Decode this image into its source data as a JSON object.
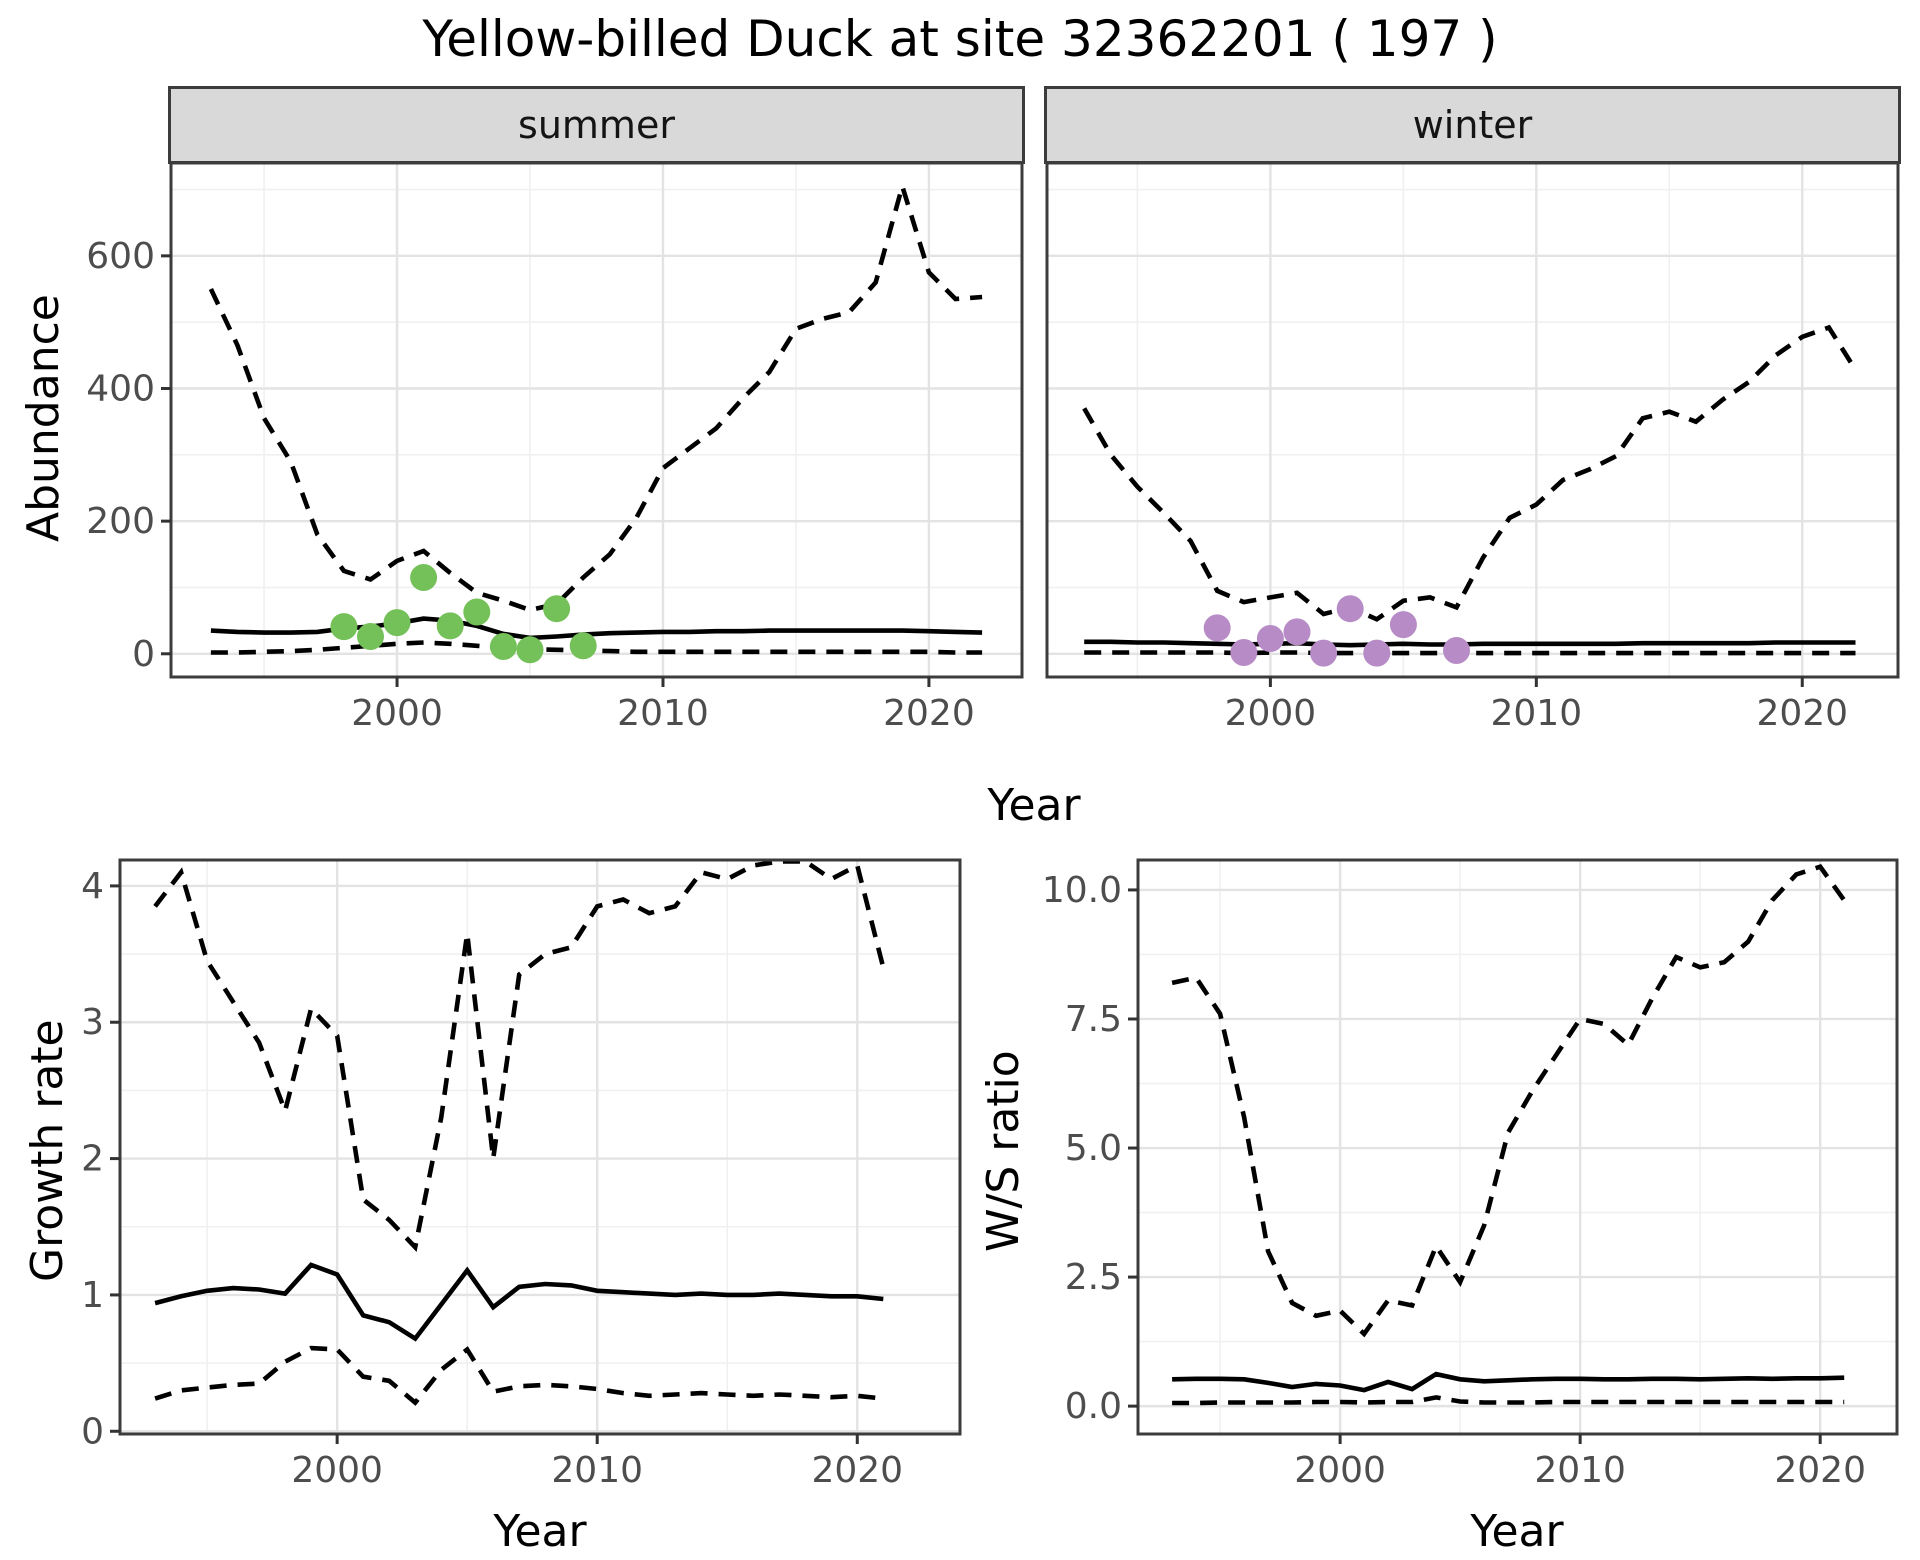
{
  "title": "Yellow-billed Duck at site 32362201 ( 197 )",
  "shared_axes": {
    "y": "Abundance",
    "x": "Year"
  },
  "colors": {
    "summer_point": "#74c159",
    "winter_point": "#b78cc6",
    "line": "#000000",
    "grid_major": "#e3e3e3",
    "grid_minor": "#f0f0f0",
    "panel_border": "#3c3c3c",
    "strip_bg": "#d9d9d9",
    "tick_text": "#4d4d4d"
  },
  "chart_data": [
    {
      "id": "summer",
      "type": "line",
      "strip_label": "summer",
      "xlabel": "Year",
      "ylabel": "Abundance",
      "xlim": [
        1991.5,
        2023.5
      ],
      "ylim": [
        -35,
        740
      ],
      "x_ticks": {
        "values": [
          2000,
          2010,
          2020
        ],
        "labels": [
          "2000",
          "2010",
          "2020"
        ]
      },
      "y_ticks": {
        "values": [
          0,
          200,
          400,
          600
        ],
        "labels": [
          "0",
          "200",
          "400",
          "600"
        ]
      },
      "x_minor": [
        1995,
        2005,
        2015
      ],
      "y_minor": [
        100,
        300,
        500,
        700
      ],
      "x": [
        1993,
        1994,
        1995,
        1996,
        1997,
        1998,
        1999,
        2000,
        2001,
        2002,
        2003,
        2004,
        2005,
        2006,
        2007,
        2008,
        2009,
        2010,
        2011,
        2012,
        2013,
        2014,
        2015,
        2016,
        2017,
        2018,
        2019,
        2020,
        2021,
        2022
      ],
      "series": [
        {
          "name": "upper_95ci",
          "style": "dashed",
          "values": [
            550,
            465,
            355,
            290,
            180,
            125,
            112,
            140,
            155,
            122,
            92,
            80,
            66,
            75,
            115,
            150,
            205,
            280,
            310,
            340,
            385,
            425,
            490,
            505,
            515,
            560,
            705,
            575,
            535,
            538
          ]
        },
        {
          "name": "median",
          "style": "solid",
          "values": [
            35,
            33,
            32,
            32,
            33,
            38,
            41,
            46,
            53,
            50,
            42,
            30,
            24,
            26,
            29,
            31,
            32,
            33,
            33,
            34,
            34,
            35,
            35,
            35,
            35,
            35,
            35,
            34,
            33,
            32
          ]
        },
        {
          "name": "lower_95ci",
          "style": "dashed",
          "values": [
            2,
            2,
            3,
            4,
            6,
            9,
            12,
            15,
            17,
            15,
            12,
            9,
            7,
            6,
            5,
            4,
            3,
            3,
            3,
            3,
            3,
            3,
            3,
            3,
            3,
            3,
            3,
            3,
            2,
            2
          ]
        }
      ],
      "points": {
        "name": "observed-counts",
        "color": "#74c159",
        "x": [
          1998,
          1999,
          2000,
          2001,
          2002,
          2003,
          2004,
          2005,
          2006,
          2007
        ],
        "y": [
          41,
          26,
          47,
          115,
          42,
          63,
          11,
          6,
          68,
          12
        ]
      }
    },
    {
      "id": "winter",
      "type": "line",
      "strip_label": "winter",
      "xlabel": "Year",
      "ylabel": "Abundance",
      "xlim": [
        1991.6,
        2023.6
      ],
      "ylim": [
        -35,
        740
      ],
      "x_ticks": {
        "values": [
          2000,
          2010,
          2020
        ],
        "labels": [
          "2000",
          "2010",
          "2020"
        ]
      },
      "y_ticks": {
        "values": [
          0,
          200,
          400,
          600
        ],
        "labels": [
          "0",
          "200",
          "400",
          "600"
        ]
      },
      "x_minor": [
        1995,
        2005,
        2015
      ],
      "y_minor": [
        100,
        300,
        500,
        700
      ],
      "x": [
        1993,
        1994,
        1995,
        1996,
        1997,
        1998,
        1999,
        2000,
        2001,
        2002,
        2003,
        2004,
        2005,
        2006,
        2007,
        2008,
        2009,
        2010,
        2011,
        2012,
        2013,
        2014,
        2015,
        2016,
        2017,
        2018,
        2019,
        2020,
        2021,
        2022
      ],
      "series": [
        {
          "name": "upper_95ci",
          "style": "dashed",
          "values": [
            370,
            300,
            252,
            212,
            170,
            95,
            78,
            85,
            92,
            60,
            70,
            52,
            80,
            85,
            70,
            145,
            205,
            225,
            262,
            278,
            298,
            355,
            365,
            350,
            383,
            410,
            450,
            478,
            492,
            428
          ]
        },
        {
          "name": "median",
          "style": "solid",
          "values": [
            18,
            18,
            17,
            17,
            16,
            15,
            14,
            15,
            16,
            14,
            13,
            14,
            15,
            14,
            14,
            15,
            15,
            15,
            15,
            15,
            15,
            16,
            16,
            16,
            16,
            16,
            17,
            17,
            17,
            17
          ]
        },
        {
          "name": "lower_95ci",
          "style": "dashed",
          "values": [
            2,
            2,
            2,
            2,
            2,
            2,
            1,
            2,
            2,
            1,
            1,
            1,
            1,
            1,
            1,
            1,
            1,
            1,
            1,
            1,
            1,
            1,
            1,
            1,
            1,
            1,
            1,
            1,
            1,
            1
          ]
        }
      ],
      "points": {
        "name": "observed-counts",
        "color": "#b78cc6",
        "x": [
          1998,
          1999,
          2000,
          2001,
          2002,
          2003,
          2004,
          2005,
          2007
        ],
        "y": [
          39,
          2,
          23,
          33,
          1,
          68,
          1,
          44,
          5
        ]
      }
    },
    {
      "id": "growth",
      "type": "line",
      "strip_label": "",
      "xlabel": "Year",
      "ylabel": "Growth rate",
      "xlim": [
        1991.65,
        2023.95
      ],
      "ylim": [
        -0.02,
        4.19
      ],
      "x_ticks": {
        "values": [
          2000,
          2010,
          2020
        ],
        "labels": [
          "2000",
          "2010",
          "2020"
        ]
      },
      "y_ticks": {
        "values": [
          0,
          1,
          2,
          3,
          4
        ],
        "labels": [
          "0",
          "1",
          "2",
          "3",
          "4"
        ]
      },
      "x_minor": [
        1995,
        2005,
        2015
      ],
      "y_minor": [
        0.5,
        1.5,
        2.5,
        3.5
      ],
      "x": [
        1993,
        1994,
        1995,
        1996,
        1997,
        1998,
        1999,
        2000,
        2001,
        2002,
        2003,
        2004,
        2005,
        2006,
        2007,
        2008,
        2009,
        2010,
        2011,
        2012,
        2013,
        2014,
        2015,
        2016,
        2017,
        2018,
        2019,
        2020,
        2021
      ],
      "series": [
        {
          "name": "upper_95ci",
          "style": "dashed",
          "values": [
            3.85,
            4.1,
            3.45,
            3.15,
            2.85,
            2.35,
            3.1,
            2.9,
            1.7,
            1.55,
            1.35,
            2.3,
            3.65,
            2.0,
            3.35,
            3.5,
            3.55,
            3.85,
            3.9,
            3.8,
            3.85,
            4.1,
            4.05,
            4.15,
            4.18,
            4.18,
            4.05,
            4.15,
            3.4
          ]
        },
        {
          "name": "median",
          "style": "solid",
          "values": [
            0.94,
            0.99,
            1.03,
            1.05,
            1.04,
            1.01,
            1.22,
            1.15,
            0.85,
            0.8,
            0.68,
            0.93,
            1.18,
            0.91,
            1.06,
            1.08,
            1.07,
            1.03,
            1.02,
            1.01,
            1.0,
            1.01,
            1.0,
            1.0,
            1.01,
            1.0,
            0.99,
            0.99,
            0.97
          ]
        },
        {
          "name": "lower_95ci",
          "style": "dashed",
          "values": [
            0.24,
            0.3,
            0.32,
            0.34,
            0.35,
            0.51,
            0.61,
            0.6,
            0.4,
            0.37,
            0.21,
            0.45,
            0.6,
            0.29,
            0.33,
            0.34,
            0.33,
            0.31,
            0.28,
            0.26,
            0.27,
            0.28,
            0.27,
            0.26,
            0.27,
            0.26,
            0.25,
            0.26,
            0.24
          ]
        }
      ],
      "points": null
    },
    {
      "id": "ws",
      "type": "line",
      "strip_label": "",
      "xlabel": "Year",
      "ylabel": "W/S ratio",
      "xlim": [
        1991.58,
        2023.2
      ],
      "ylim": [
        -0.54,
        10.58
      ],
      "x_ticks": {
        "values": [
          2000,
          2010,
          2020
        ],
        "labels": [
          "2000",
          "2010",
          "2020"
        ]
      },
      "y_ticks": {
        "values": [
          0,
          2.5,
          5,
          7.5,
          10
        ],
        "labels": [
          "0.0",
          "2.5",
          "5.0",
          "7.5",
          "10.0"
        ]
      },
      "x_minor": [
        1995,
        2005,
        2015
      ],
      "y_minor": [
        1.25,
        3.75,
        6.25,
        8.75
      ],
      "x": [
        1993,
        1994,
        1995,
        1996,
        1997,
        1998,
        1999,
        2000,
        2001,
        2002,
        2003,
        2004,
        2005,
        2006,
        2007,
        2008,
        2009,
        2010,
        2011,
        2012,
        2013,
        2014,
        2015,
        2016,
        2017,
        2018,
        2019,
        2020,
        2021
      ],
      "series": [
        {
          "name": "upper_95ci",
          "style": "dashed",
          "values": [
            8.2,
            8.3,
            7.6,
            5.6,
            3.0,
            2.0,
            1.75,
            1.85,
            1.4,
            2.05,
            1.95,
            3.1,
            2.4,
            3.5,
            5.3,
            6.1,
            6.8,
            7.5,
            7.4,
            7.0,
            7.9,
            8.7,
            8.5,
            8.6,
            9.0,
            9.8,
            10.3,
            10.45,
            9.8
          ]
        },
        {
          "name": "median",
          "style": "solid",
          "values": [
            0.52,
            0.53,
            0.53,
            0.52,
            0.45,
            0.37,
            0.43,
            0.4,
            0.31,
            0.47,
            0.33,
            0.62,
            0.52,
            0.48,
            0.5,
            0.52,
            0.53,
            0.53,
            0.52,
            0.52,
            0.53,
            0.53,
            0.52,
            0.53,
            0.54,
            0.53,
            0.54,
            0.54,
            0.55
          ]
        },
        {
          "name": "lower_95ci",
          "style": "dashed",
          "values": [
            0.06,
            0.06,
            0.07,
            0.07,
            0.07,
            0.07,
            0.08,
            0.08,
            0.07,
            0.08,
            0.08,
            0.17,
            0.09,
            0.07,
            0.07,
            0.07,
            0.08,
            0.08,
            0.08,
            0.08,
            0.08,
            0.08,
            0.08,
            0.08,
            0.08,
            0.08,
            0.08,
            0.08,
            0.08
          ]
        }
      ],
      "points": null
    }
  ]
}
